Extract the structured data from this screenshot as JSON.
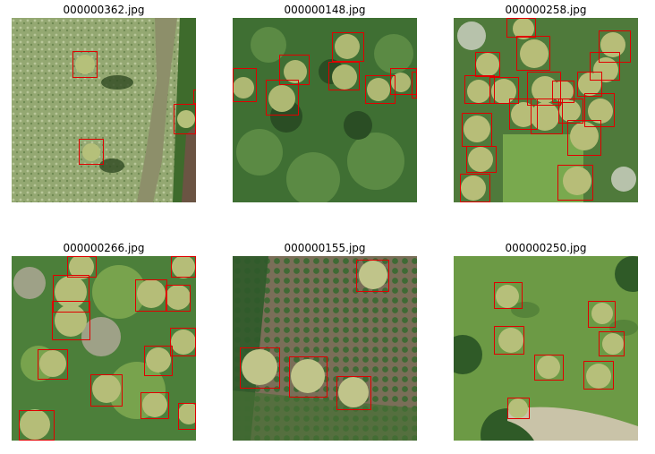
{
  "figure": {
    "panels": [
      {
        "title": "000000362.jpg",
        "scene": "grassland",
        "palm_box_count": 4
      },
      {
        "title": "000000148.jpg",
        "scene": "dense-forest",
        "palm_box_count": 8
      },
      {
        "title": "000000258.jpg",
        "scene": "palm-cluster",
        "palm_box_count": 23
      },
      {
        "title": "000000266.jpg",
        "scene": "mixed-forest",
        "palm_box_count": 14
      },
      {
        "title": "000000155.jpg",
        "scene": "plantation-rows",
        "palm_box_count": 4
      },
      {
        "title": "000000250.jpg",
        "scene": "pasture-with-road",
        "palm_box_count": 7
      }
    ],
    "box_color": "#e00000"
  }
}
